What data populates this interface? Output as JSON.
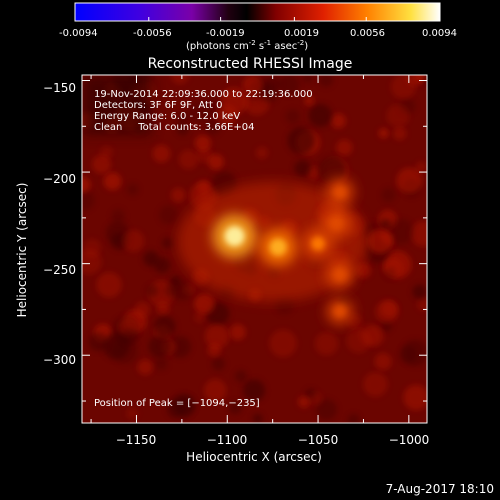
{
  "colorbar": {
    "tick_labels": [
      "-0.0094",
      "-0.0056",
      "-0.0019",
      "0.0019",
      "0.0056",
      "0.0094"
    ],
    "units_prefix": "(photons cm",
    "units_exp1": "-2",
    "units_mid": " s",
    "units_exp2": "-1",
    "units_mid2": " asec",
    "units_exp3": "-2",
    "units_suffix": ")"
  },
  "chart_data": {
    "type": "heatmap",
    "title": "Reconstructed RHESSI Image",
    "xlabel": "Heliocentric X (arcsec)",
    "ylabel": "Heliocentric Y (arcsec)",
    "xlim": [
      -1180,
      -990
    ],
    "ylim": [
      -337,
      -147
    ],
    "x_ticks": [
      -1150,
      -1100,
      -1050,
      -1000
    ],
    "x_tick_labels": [
      "−1150",
      "−1100",
      "−1050",
      "−1000"
    ],
    "y_ticks": [
      -150,
      -200,
      -250,
      -300
    ],
    "y_tick_labels": [
      "−150",
      "−200",
      "−250",
      "−300"
    ],
    "colorbar_range": [
      -0.0094,
      0.0094
    ],
    "sources": [
      {
        "x": -1096,
        "y": -235,
        "relative_intensity": 1.0
      },
      {
        "x": -1072,
        "y": -241,
        "relative_intensity": 0.78
      },
      {
        "x": -1050,
        "y": -239,
        "relative_intensity": 0.55
      },
      {
        "x": -1040,
        "y": -228,
        "relative_intensity": 0.5
      },
      {
        "x": -1038,
        "y": -211,
        "relative_intensity": 0.45
      },
      {
        "x": -1038,
        "y": -256,
        "relative_intensity": 0.42
      },
      {
        "x": -1038,
        "y": -276,
        "relative_intensity": 0.38
      }
    ],
    "annotations": [
      "19-Nov-2014 22:09:36.000 to 22:19:36.000",
      "Detectors: 3F 6F 9F, Att 0",
      "Energy Range: 6.0 - 12.0 keV",
      "Clean     Total counts: 3.66E+04"
    ],
    "peak_label": "Position of Peak = [−1094,−235]"
  },
  "footer": {
    "timestamp": "7-Aug-2017 18:10"
  }
}
